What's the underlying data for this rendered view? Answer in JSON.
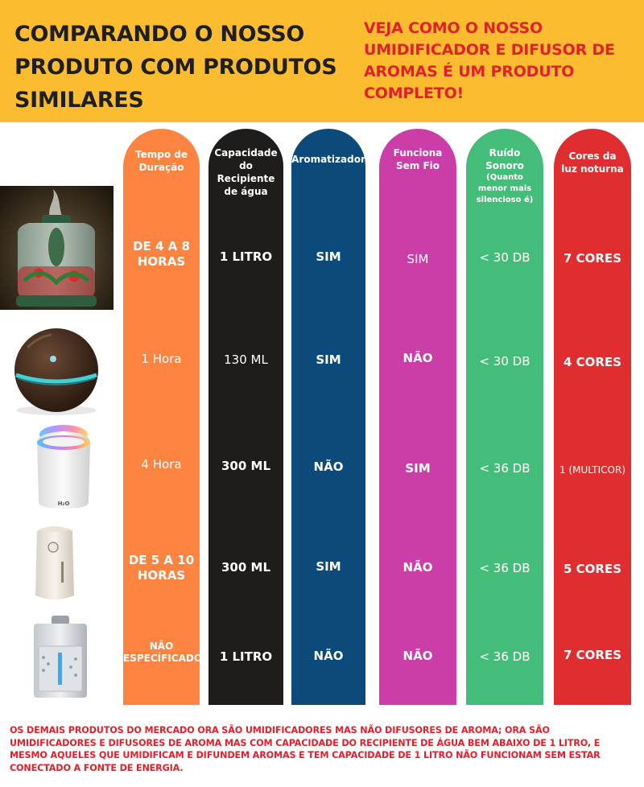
{
  "header": {
    "title": "COMPARANDO O NOSSO PRODUTO COM PRODUTOS SIMILARES",
    "tagline": "VEJA COMO O NOSSO UMIDIFICADOR E DIFUSOR DE AROMAS É UM PRODUTO COMPLETO!"
  },
  "colors": {
    "header_bg": "#fbbd2f",
    "col_duracao": "#fd8340",
    "col_capacidade": "#1f1d1b",
    "col_aromatizador": "#0b4a7b",
    "col_sem_fio": "#cb3ea8",
    "col_ruido": "#44bc7a",
    "col_cores": "#e02d30",
    "accent_red": "#e2202a"
  },
  "columns": [
    {
      "header": [
        "Tempo de",
        "Duração"
      ],
      "values": [
        [
          "DE 4 A 8",
          "HORAS"
        ],
        [
          "1 Hora"
        ],
        [
          "4 Hora"
        ],
        [
          "DE 5 A 10",
          "HORAS"
        ],
        [
          "NÃO",
          "ESPECÍFICADO"
        ]
      ]
    },
    {
      "header": [
        "Capacidade",
        "do",
        "Recipiente",
        "de água"
      ],
      "values": [
        [
          "1 LITRO"
        ],
        [
          "130 ML"
        ],
        [
          "300 ML"
        ],
        [
          "300 ML"
        ],
        [
          "1 LITRO"
        ]
      ]
    },
    {
      "header": [
        "Aromatizador"
      ],
      "values": [
        [
          "SIM"
        ],
        [
          "SIM"
        ],
        [
          "NÃO"
        ],
        [
          "SIM"
        ],
        [
          "NÃO"
        ]
      ]
    },
    {
      "header": [
        "Funciona",
        "Sem Fio"
      ],
      "values": [
        [
          "SIM"
        ],
        [
          "NÃO"
        ],
        [
          "SIM"
        ],
        [
          "NÃO"
        ],
        [
          "NÃO"
        ]
      ]
    },
    {
      "header": [
        "Ruído",
        "Sonoro"
      ],
      "subheader": [
        "(Quanto",
        "menor mais",
        "silencioso é)"
      ],
      "values": [
        [
          "< 30 DB"
        ],
        [
          "< 30 DB"
        ],
        [
          "< 36 DB"
        ],
        [
          "< 36 DB"
        ],
        [
          "< 36 DB"
        ]
      ]
    },
    {
      "header": [
        "Cores da",
        "luz noturna"
      ],
      "values": [
        [
          "7 CORES"
        ],
        [
          "4 CORES"
        ],
        [
          "1 (MULTICOR)"
        ],
        [
          "5 CORES"
        ],
        [
          "7 CORES"
        ]
      ]
    }
  ],
  "products": [
    {
      "icon": "glass-jar-humidifier-photo"
    },
    {
      "icon": "wood-sphere-diffuser-photo"
    },
    {
      "icon": "white-cup-humidifier-photo",
      "label": "H₂O"
    },
    {
      "icon": "white-capsule-humidifier-photo"
    },
    {
      "icon": "silver-box-humidifier-photo"
    }
  ],
  "footer": "OS DEMAIS PRODUTOS DO MERCADO ORA SÃO UMIDIFICADORES MAS NÃO DIFUSORES DE AROMA; ORA SÃO UMIDIFICADORES E DIFUSORES DE AROMA MAS COM CAPACIDADE DO RECIPIENTE DE ÁGUA BEM ABAIXO DE 1 LITRO, E MESMO AQUELES QUE UMIDIFICAM E DIFUNDEM AROMAS E TEM CAPACIDADE DE 1 LITRO NÃO FUNCIONAM SEM ESTAR CONECTADO A FONTE DE ENERGIA."
}
